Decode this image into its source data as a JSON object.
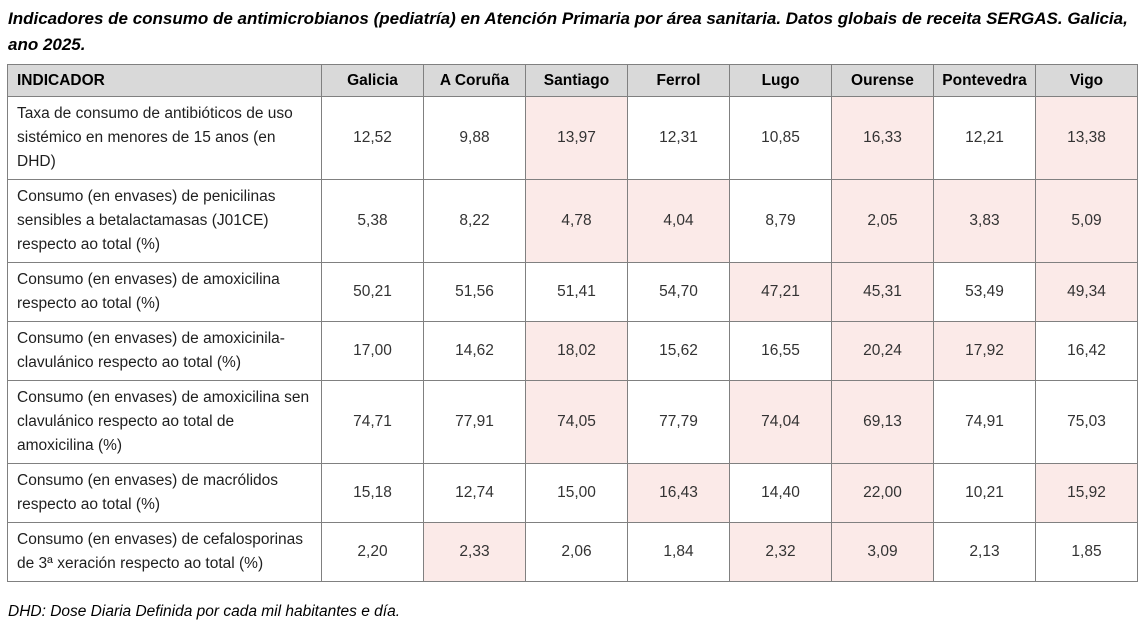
{
  "title": "Indicadores de consumo de antimicrobianos (pediatría) en Atención Primaria por área sanitaria. Datos globais de receita SERGAS. Galicia, ano 2025.",
  "footnote": "DHD: Dose Diaria Definida por cada mil habitantes e día.",
  "colors": {
    "header_bg": "#d9d9d9",
    "highlight_bg": "#fbeae8",
    "border_color": "#808080"
  },
  "table": {
    "columns": [
      "INDICADOR",
      "Galicia",
      "A Coruña",
      "Santiago",
      "Ferrol",
      "Lugo",
      "Ourense",
      "Pontevedra",
      "Vigo"
    ],
    "rows": [
      {
        "indicator": "Taxa de consumo de antibióticos de uso sistémico en menores de 15 anos (en DHD)",
        "values": [
          "12,52",
          "9,88",
          "13,97",
          "12,31",
          "10,85",
          "16,33",
          "12,21",
          "13,38"
        ],
        "highlighted": [
          false,
          false,
          true,
          false,
          false,
          true,
          false,
          true
        ]
      },
      {
        "indicator": "Consumo (en envases) de penicilinas sensibles a betalactamasas (J01CE) respecto ao total (%)",
        "values": [
          "5,38",
          "8,22",
          "4,78",
          "4,04",
          "8,79",
          "2,05",
          "3,83",
          "5,09"
        ],
        "highlighted": [
          false,
          false,
          true,
          true,
          false,
          true,
          true,
          true
        ]
      },
      {
        "indicator": "Consumo (en envases) de amoxicilina respecto ao total (%)",
        "values": [
          "50,21",
          "51,56",
          "51,41",
          "54,70",
          "47,21",
          "45,31",
          "53,49",
          "49,34"
        ],
        "highlighted": [
          false,
          false,
          false,
          false,
          true,
          true,
          false,
          true
        ]
      },
      {
        "indicator": "Consumo (en envases) de amoxicinila-clavulánico respecto ao total (%)",
        "values": [
          "17,00",
          "14,62",
          "18,02",
          "15,62",
          "16,55",
          "20,24",
          "17,92",
          "16,42"
        ],
        "highlighted": [
          false,
          false,
          true,
          false,
          false,
          true,
          true,
          false
        ]
      },
      {
        "indicator": "Consumo (en envases) de amoxicilina sen clavulánico respecto ao total de amoxicilina (%)",
        "values": [
          "74,71",
          "77,91",
          "74,05",
          "77,79",
          "74,04",
          "69,13",
          "74,91",
          "75,03"
        ],
        "highlighted": [
          false,
          false,
          true,
          false,
          true,
          true,
          false,
          false
        ]
      },
      {
        "indicator": "Consumo (en envases) de macrólidos respecto ao total (%)",
        "values": [
          "15,18",
          "12,74",
          "15,00",
          "16,43",
          "14,40",
          "22,00",
          "10,21",
          "15,92"
        ],
        "highlighted": [
          false,
          false,
          false,
          true,
          false,
          true,
          false,
          true
        ]
      },
      {
        "indicator": "Consumo (en envases) de cefalosporinas de 3ª xeración respecto ao total (%)",
        "values": [
          "2,20",
          "2,33",
          "2,06",
          "1,84",
          "2,32",
          "3,09",
          "2,13",
          "1,85"
        ],
        "highlighted": [
          false,
          true,
          false,
          false,
          true,
          true,
          false,
          false
        ]
      }
    ]
  }
}
